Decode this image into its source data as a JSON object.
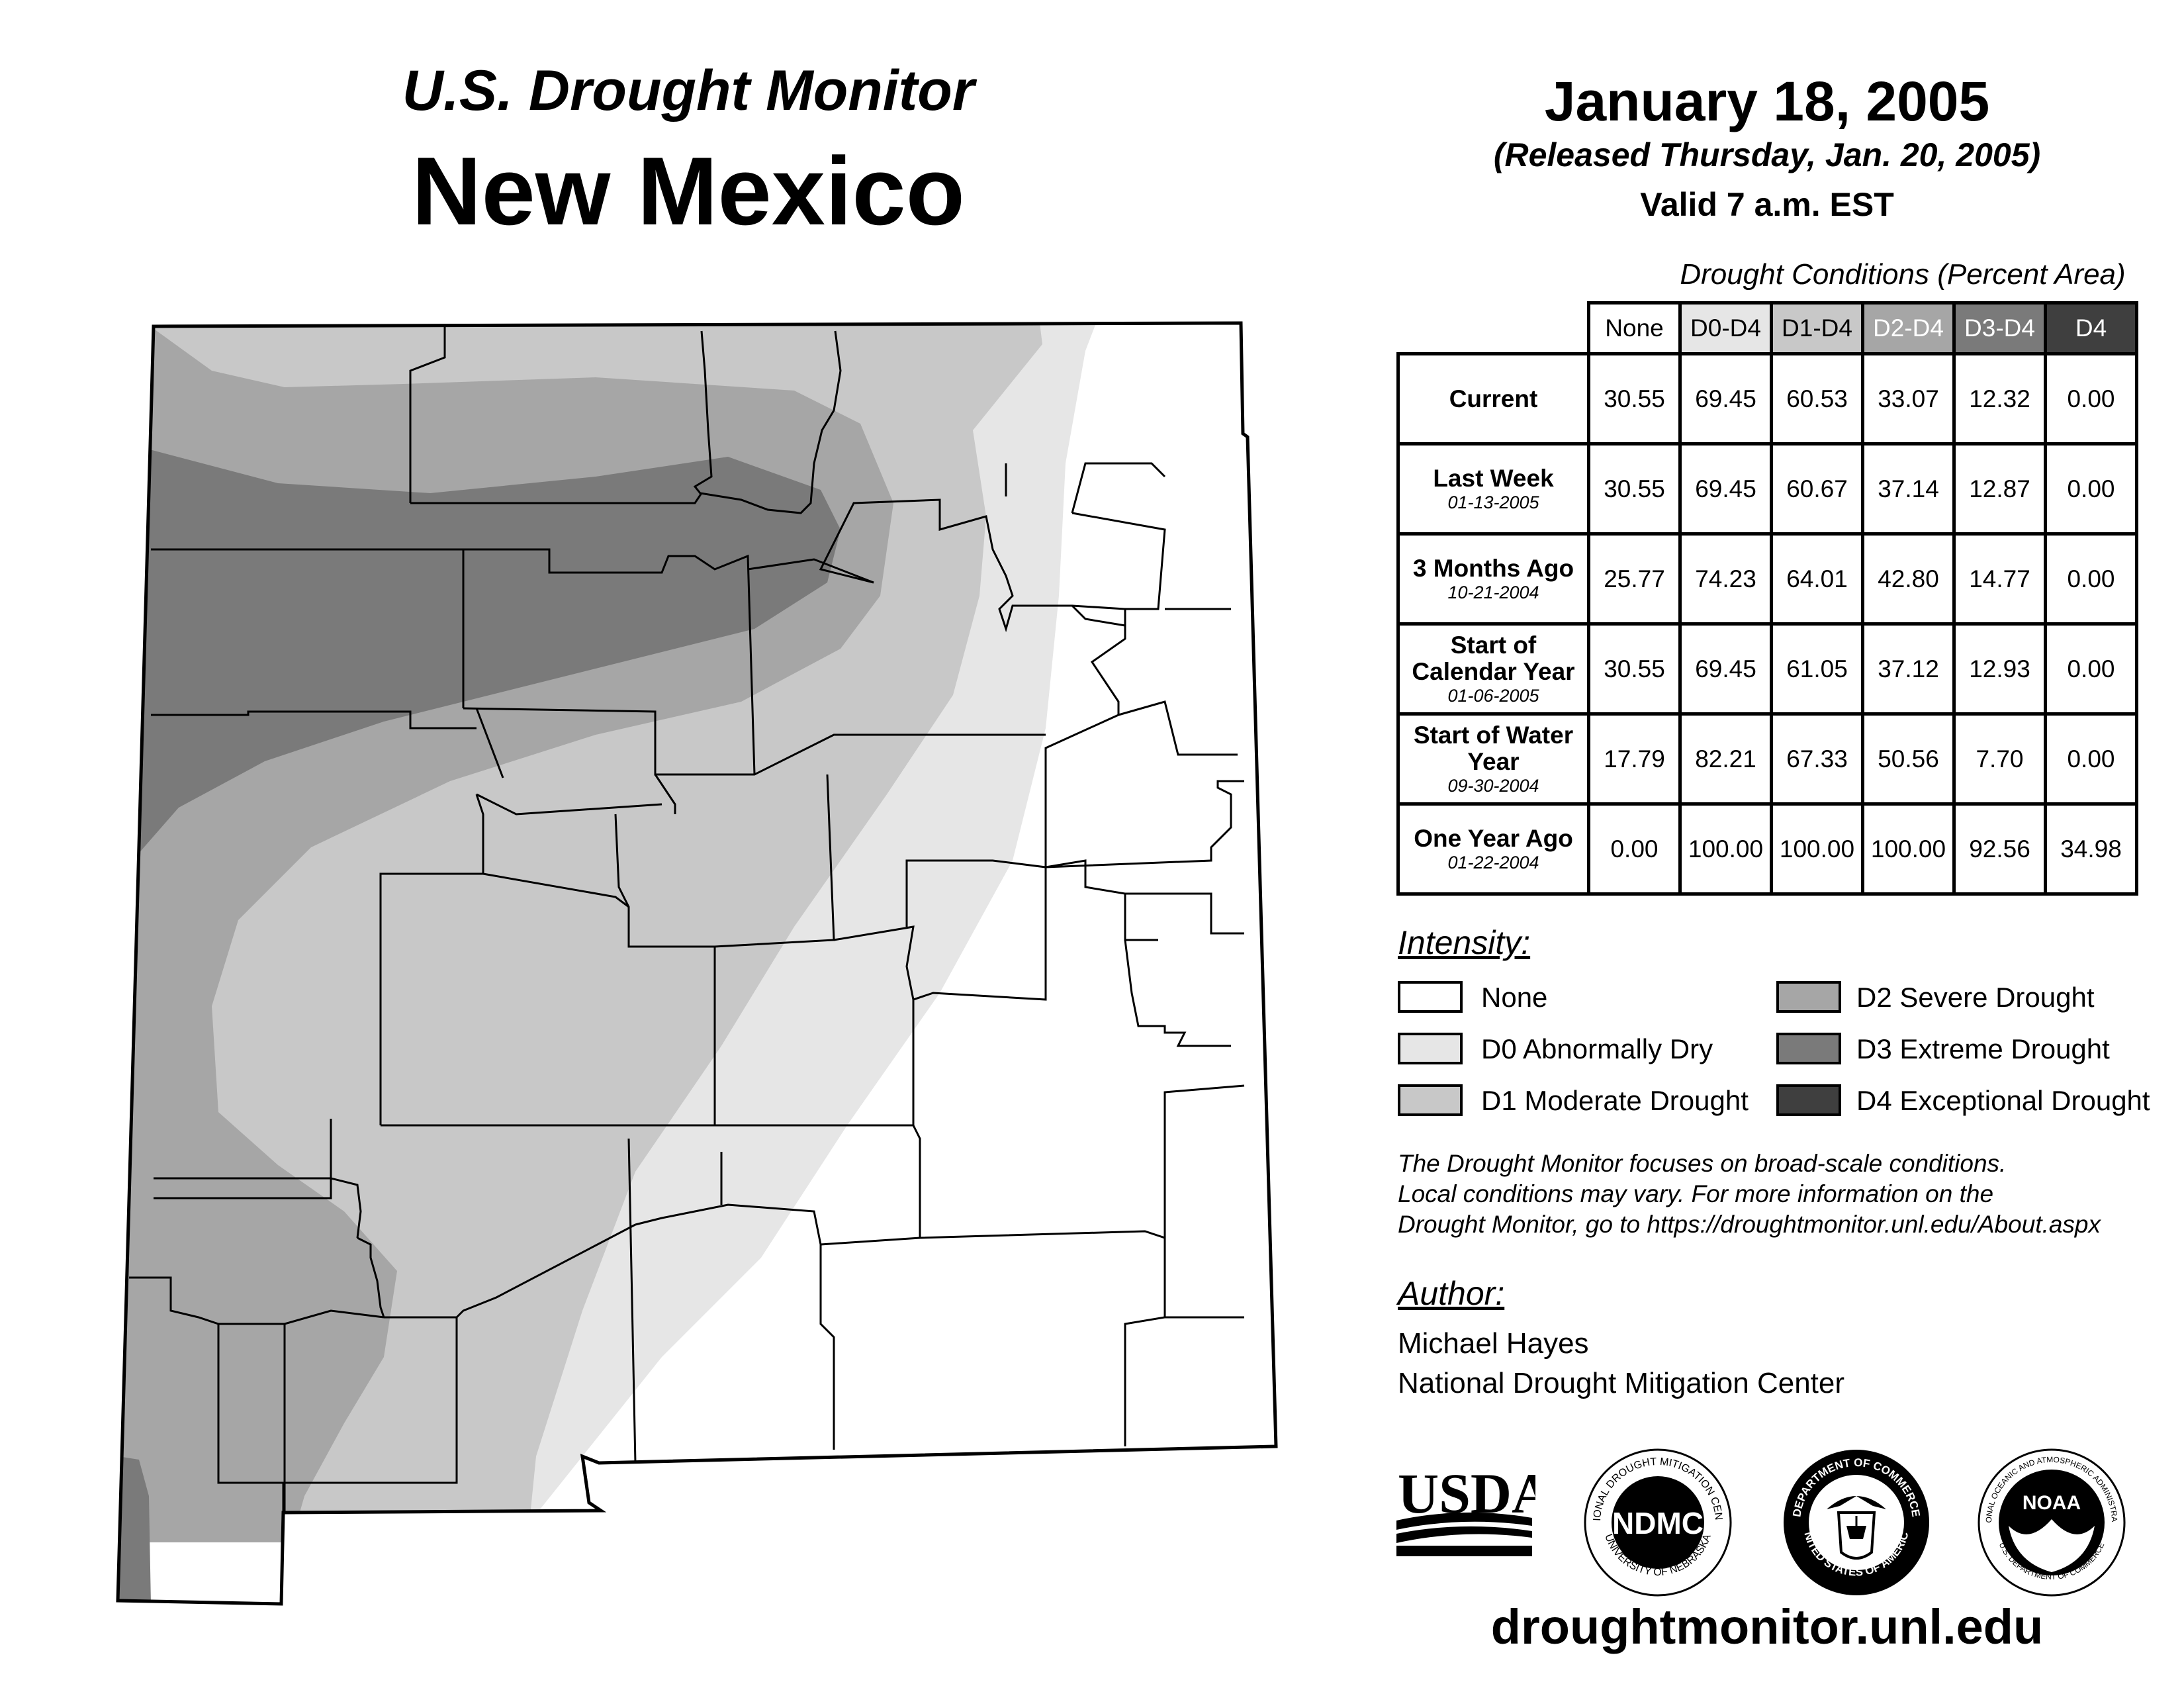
{
  "header": {
    "subtitle": "U.S. Drought Monitor",
    "state": "New Mexico",
    "date": "January 18, 2005",
    "released": "(Released Thursday, Jan. 20, 2005)",
    "valid": "Valid 7 a.m. EST"
  },
  "table": {
    "title": "Drought Conditions (Percent Area)",
    "columns": [
      "None",
      "D0-D4",
      "D1-D4",
      "D2-D4",
      "D3-D4",
      "D4"
    ],
    "rows": [
      {
        "label": "Current",
        "date": "",
        "values": [
          "30.55",
          "69.45",
          "60.53",
          "33.07",
          "12.32",
          "0.00"
        ]
      },
      {
        "label": "Last Week",
        "date": "01-13-2005",
        "values": [
          "30.55",
          "69.45",
          "60.67",
          "37.14",
          "12.87",
          "0.00"
        ]
      },
      {
        "label": "3 Months Ago",
        "date": "10-21-2004",
        "values": [
          "25.77",
          "74.23",
          "64.01",
          "42.80",
          "14.77",
          "0.00"
        ]
      },
      {
        "label": "Start of Calendar Year",
        "date": "01-06-2005",
        "values": [
          "30.55",
          "69.45",
          "61.05",
          "37.12",
          "12.93",
          "0.00"
        ]
      },
      {
        "label": "Start of Water Year",
        "date": "09-30-2004",
        "values": [
          "17.79",
          "82.21",
          "67.33",
          "50.56",
          "7.70",
          "0.00"
        ]
      },
      {
        "label": "One Year Ago",
        "date": "01-22-2004",
        "values": [
          "0.00",
          "100.00",
          "100.00",
          "100.00",
          "92.56",
          "34.98"
        ]
      }
    ]
  },
  "legend": {
    "title": "Intensity:",
    "items": [
      {
        "label": "None",
        "color": "#ffffff"
      },
      {
        "label": "D0 Abnormally Dry",
        "color": "#e6e6e6"
      },
      {
        "label": "D1 Moderate Drought",
        "color": "#c8c8c8"
      },
      {
        "label": "D2 Severe Drought",
        "color": "#a6a6a6"
      },
      {
        "label": "D3 Extreme Drought",
        "color": "#7a7a7a"
      },
      {
        "label": "D4 Exceptional Drought",
        "color": "#3f3f3f"
      }
    ]
  },
  "note": {
    "line1": "The Drought Monitor focuses on broad-scale conditions.",
    "line2": "Local conditions may vary. For more information on the",
    "line3": "Drought Monitor, go to https://droughtmonitor.unl.edu/About.aspx"
  },
  "author": {
    "title": "Author:",
    "name": "Michael Hayes",
    "org": "National Drought Mitigation Center"
  },
  "logos": {
    "usda": "USDA",
    "ndmc": "NDMC",
    "ndmc_ring_top": "NATIONAL DROUGHT MITIGATION CENTER",
    "ndmc_ring_bottom": "UNIVERSITY OF NEBRASKA",
    "doc_ring_top": "DEPARTMENT OF COMMERCE",
    "doc_ring_bottom": "UNITED STATES OF AMERICA",
    "noaa": "NOAA",
    "noaa_ring_top": "NATIONAL OCEANIC AND ATMOSPHERIC ADMINISTRATION",
    "noaa_ring_bottom": "U.S. DEPARTMENT OF COMMERCE"
  },
  "footer": {
    "url": "droughtmonitor.unl.edu"
  }
}
